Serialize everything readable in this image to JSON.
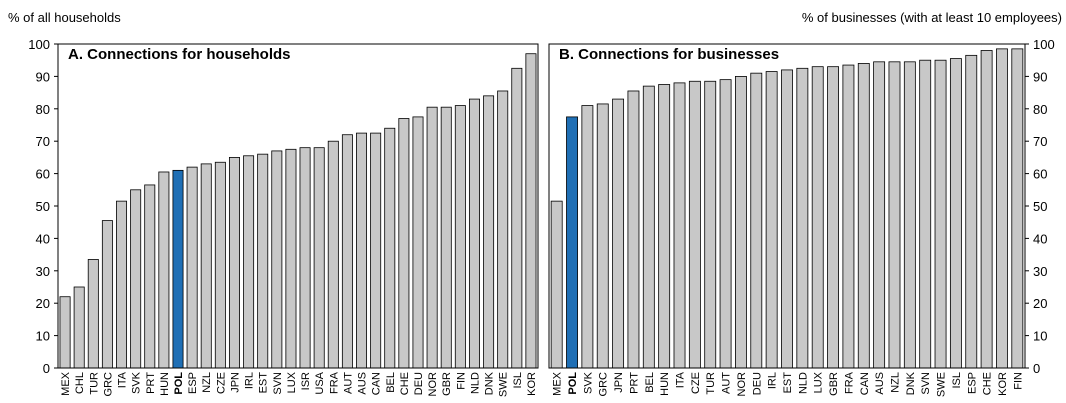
{
  "chart_data": [
    {
      "type": "bar",
      "title": "A. Connections for households",
      "y_label": "% of all households",
      "axis_side": "left",
      "categories": [
        "MEX",
        "CHL",
        "TUR",
        "GRC",
        "ITA",
        "SVK",
        "PRT",
        "HUN",
        "POL",
        "ESP",
        "NZL",
        "CZE",
        "JPN",
        "IRL",
        "EST",
        "SVN",
        "LUX",
        "ISR",
        "USA",
        "FRA",
        "AUT",
        "AUS",
        "CAN",
        "BEL",
        "CHE",
        "DEU",
        "NOR",
        "GBR",
        "FIN",
        "NLD",
        "DNK",
        "SWE",
        "ISL",
        "KOR"
      ],
      "values": [
        22,
        25,
        33.5,
        45.5,
        51.5,
        55,
        56.5,
        60.5,
        61,
        62,
        63,
        63.5,
        65,
        65.5,
        66,
        67,
        67.5,
        68,
        68,
        70,
        72,
        72.5,
        72.5,
        74,
        77,
        77.5,
        80.5,
        80.5,
        81,
        83,
        84,
        85.5,
        92.5,
        97
      ],
      "colors": [
        "#c8c8c8",
        "#c8c8c8",
        "#c8c8c8",
        "#c8c8c8",
        "#c8c8c8",
        "#c8c8c8",
        "#c8c8c8",
        "#c8c8c8",
        "#1f6fb5",
        "#c8c8c8",
        "#c8c8c8",
        "#c8c8c8",
        "#c8c8c8",
        "#c8c8c8",
        "#c8c8c8",
        "#c8c8c8",
        "#c8c8c8",
        "#c8c8c8",
        "#c8c8c8",
        "#c8c8c8",
        "#c8c8c8",
        "#c8c8c8",
        "#c8c8c8",
        "#c8c8c8",
        "#c8c8c8",
        "#c8c8c8",
        "#c8c8c8",
        "#c8c8c8",
        "#c8c8c8",
        "#c8c8c8",
        "#c8c8c8",
        "#c8c8c8",
        "#c8c8c8",
        "#c8c8c8"
      ],
      "ylim": [
        0,
        100
      ],
      "yticks": [
        0,
        10,
        20,
        30,
        40,
        50,
        60,
        70,
        80,
        90,
        100
      ]
    },
    {
      "type": "bar",
      "title": "B. Connections for businesses",
      "y_label": "% of businesses (with at least 10 employees)",
      "axis_side": "right",
      "categories": [
        "MEX",
        "POL",
        "SVK",
        "GRC",
        "JPN",
        "PRT",
        "BEL",
        "HUN",
        "ITA",
        "CZE",
        "TUR",
        "AUT",
        "NOR",
        "DEU",
        "IRL",
        "EST",
        "NLD",
        "LUX",
        "GBR",
        "FRA",
        "CAN",
        "AUS",
        "NZL",
        "DNK",
        "SVN",
        "SWE",
        "ISL",
        "ESP",
        "CHE",
        "KOR",
        "FIN"
      ],
      "values": [
        51.5,
        77.5,
        81,
        81.5,
        83,
        85.5,
        87,
        87.5,
        88,
        88.5,
        88.5,
        89,
        90,
        91,
        91.5,
        92,
        92.5,
        93,
        93,
        93.5,
        94,
        94.5,
        94.5,
        94.5,
        95,
        95,
        95.5,
        96.5,
        98,
        98.5,
        98.5
      ],
      "colors": [
        "#c8c8c8",
        "#1f6fb5",
        "#c8c8c8",
        "#c8c8c8",
        "#c8c8c8",
        "#c8c8c8",
        "#c8c8c8",
        "#c8c8c8",
        "#c8c8c8",
        "#c8c8c8",
        "#c8c8c8",
        "#c8c8c8",
        "#c8c8c8",
        "#c8c8c8",
        "#c8c8c8",
        "#c8c8c8",
        "#c8c8c8",
        "#c8c8c8",
        "#c8c8c8",
        "#c8c8c8",
        "#c8c8c8",
        "#c8c8c8",
        "#c8c8c8",
        "#c8c8c8",
        "#c8c8c8",
        "#c8c8c8",
        "#c8c8c8",
        "#c8c8c8",
        "#c8c8c8",
        "#c8c8c8",
        "#c8c8c8"
      ],
      "ylim": [
        0,
        100
      ],
      "yticks": [
        0,
        10,
        20,
        30,
        40,
        50,
        60,
        70,
        80,
        90,
        100
      ]
    }
  ]
}
